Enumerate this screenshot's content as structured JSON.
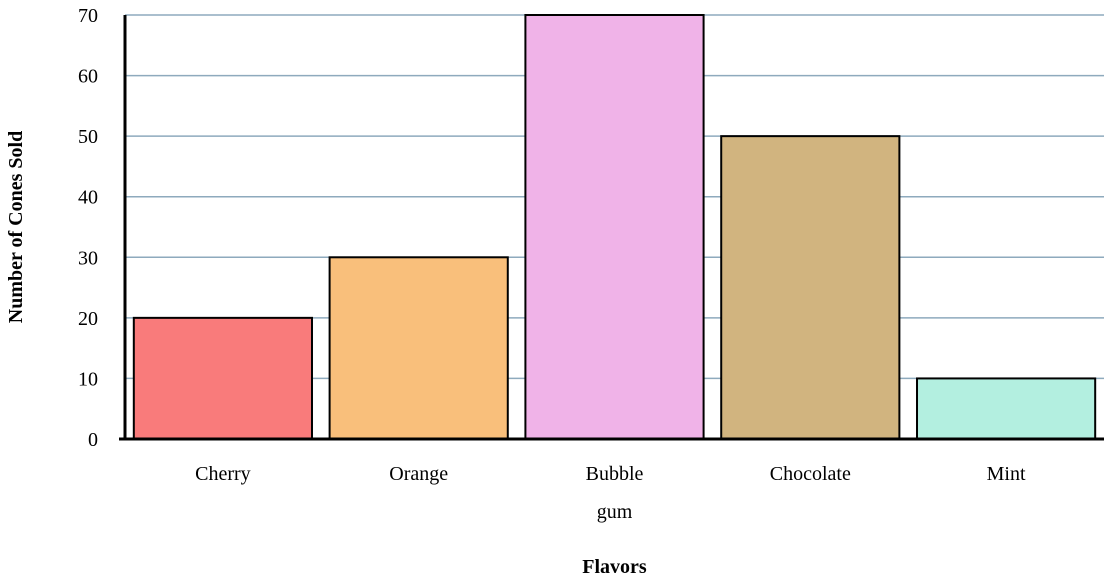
{
  "chart_data": {
    "type": "bar",
    "categories": [
      "Cherry",
      "Orange",
      "Bubble gum",
      "Chocolate",
      "Mint"
    ],
    "category_lines": [
      [
        "Cherry"
      ],
      [
        "Orange"
      ],
      [
        "Bubble",
        "gum"
      ],
      [
        "Chocolate"
      ],
      [
        "Mint"
      ]
    ],
    "values": [
      20,
      30,
      70,
      50,
      10
    ],
    "colors": [
      "#f97b7b",
      "#f9bf7b",
      "#f0b3e8",
      "#d1b47f",
      "#b3efe0"
    ],
    "xlabel": "Flavors",
    "ylabel": "Number of Cones Sold",
    "ylim": [
      0,
      70
    ],
    "yticks": [
      0,
      10,
      20,
      30,
      40,
      50,
      60,
      70
    ],
    "grid": true,
    "grid_color": "#8eaabd"
  }
}
